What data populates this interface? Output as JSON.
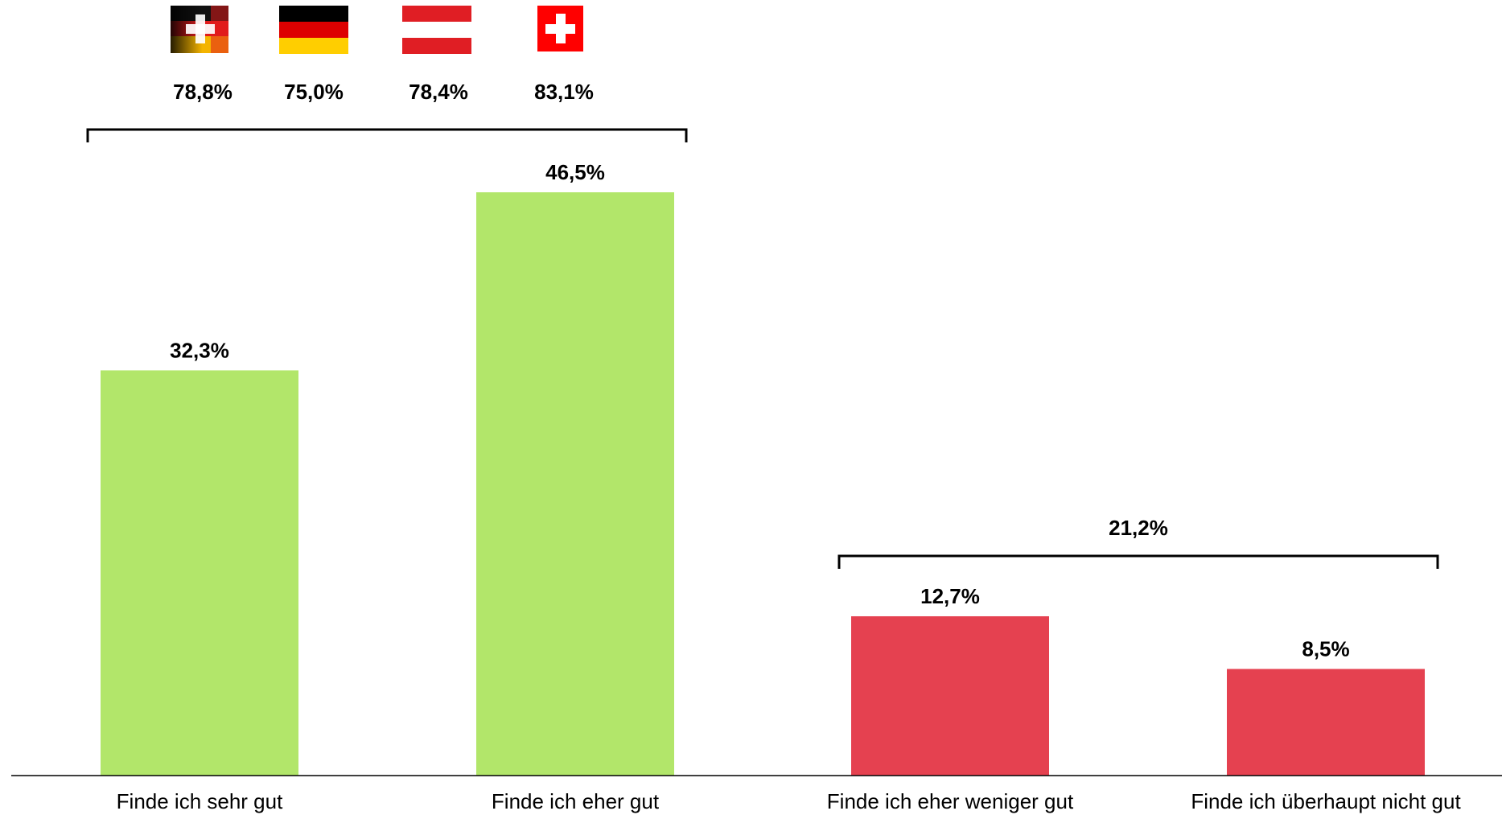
{
  "chart_data": {
    "type": "bar",
    "title": "",
    "xlabel": "",
    "ylabel": "",
    "categories": [
      "Finde ich sehr gut",
      "Finde ich eher gut",
      "Finde ich eher weniger gut",
      "Finde ich überhaupt nicht gut"
    ],
    "values": [
      32.3,
      46.5,
      12.7,
      8.5
    ],
    "value_labels": [
      "32,3%",
      "46,5%",
      "12,7%",
      "8,5%"
    ],
    "bar_colors": [
      "#b2e66a",
      "#b2e66a",
      "#e54150",
      "#e54150"
    ],
    "ylim": [
      0,
      46.5
    ],
    "grid": false,
    "group_brackets": [
      {
        "covers": [
          "Finde ich sehr gut",
          "Finde ich eher gut"
        ],
        "total_label": "",
        "country_breakdown": [
          {
            "flag": "swiss-german-mixed-flag-icon",
            "label": "78,8%"
          },
          {
            "flag": "germany-flag-icon",
            "label": "75,0%"
          },
          {
            "flag": "austria-flag-icon",
            "label": "78,4%"
          },
          {
            "flag": "switzerland-flag-icon",
            "label": "83,1%"
          }
        ]
      },
      {
        "covers": [
          "Finde ich eher weniger gut",
          "Finde ich überhaupt nicht gut"
        ],
        "total_label": "21,2%"
      }
    ]
  }
}
